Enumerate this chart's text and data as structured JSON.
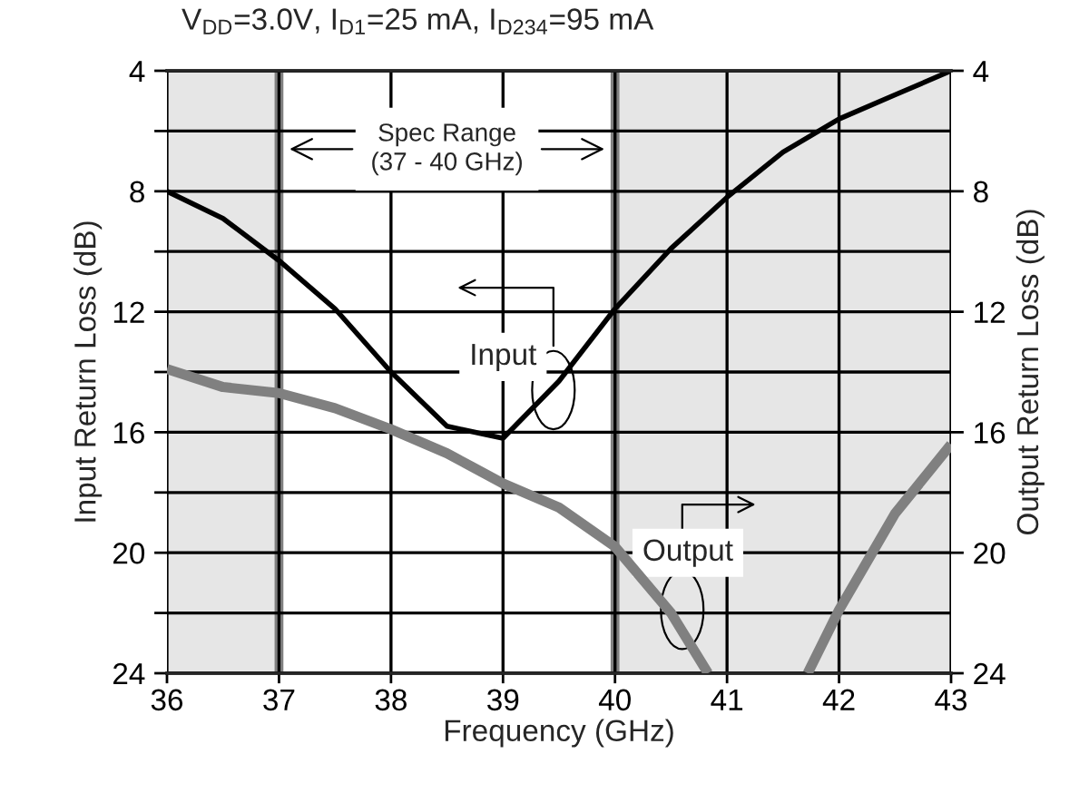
{
  "chart_data": {
    "type": "line",
    "title": "V$_{DD}$=3.0V, I$_{D1}$=25 mA, I$_{D234}$=95 mA",
    "xlabel": "Frequency (GHz)",
    "ylabel": "Input Return Loss (dB)",
    "y2label": "Output Return Loss (dB)",
    "series": [
      {
        "color": "#000000",
        "x": [
          36,
          36.5,
          37,
          37.5,
          38,
          38.5,
          39,
          39.5,
          40,
          40.5,
          41,
          41.5,
          42,
          42.5,
          43
        ],
        "values": [
          8.0,
          8.9,
          10.3,
          11.9,
          14.0,
          15.8,
          16.2,
          14.3,
          11.9,
          9.9,
          8.2,
          6.7,
          5.6,
          4.8,
          4.0
        ]
      },
      {
        "color": "#808080",
        "axis": "y2",
        "x": [
          36,
          36.5,
          37,
          37.5,
          38,
          38.5,
          39,
          39.5,
          40,
          40.5,
          40.83,
          41.3,
          41.72,
          42,
          42.5,
          43
        ],
        "values": [
          13.9,
          14.5,
          14.7,
          15.2,
          15.9,
          16.7,
          17.7,
          18.5,
          19.8,
          22.0,
          24.0,
          null,
          24.0,
          21.9,
          18.7,
          16.4
        ]
      }
    ],
    "bands": [
      {
        "axis": "x",
        "from": 36,
        "to": 37,
        "color": "#e6e6e6"
      },
      {
        "axis": "x",
        "from": 40,
        "to": 43,
        "color": "#e6e6e6",
        "label": "Spec Range\n(37 - 40 GHz)"
      }
    ],
    "xlim": [
      36,
      43
    ],
    "xticks": [
      36,
      37,
      38,
      39,
      40,
      41,
      42,
      43
    ],
    "ylim": [
      24,
      4
    ],
    "yticks": [
      {
        "value": 24,
        "label": "24"
      },
      {
        "value": 22,
        "label": null
      },
      {
        "value": 20,
        "label": "20"
      },
      {
        "value": 18,
        "label": null
      },
      {
        "value": 16,
        "label": "16"
      },
      {
        "value": 14,
        "label": null
      },
      {
        "value": 12,
        "label": "12"
      },
      {
        "value": 10,
        "label": null
      },
      {
        "value": 8,
        "label": "8"
      },
      {
        "value": 6,
        "label": null
      },
      {
        "value": 4,
        "label": "4"
      }
    ],
    "y2lim": [
      24,
      4
    ],
    "y2ticks": [
      {
        "value": 24,
        "label": "24"
      },
      {
        "value": 20,
        "label": "20"
      },
      {
        "value": 16,
        "label": "16"
      },
      {
        "value": 12,
        "label": "12"
      },
      {
        "value": 8,
        "label": "8"
      },
      {
        "value": 4,
        "label": "4"
      }
    ],
    "annotations": [
      {
        "text": "Input",
        "x": 39.45,
        "y": 14.6
      },
      {
        "text": "Output",
        "x": 40.6,
        "y": 21.9
      }
    ],
    "grid": true,
    "legend": false,
    "line_style": "solid",
    "marker": "none"
  }
}
